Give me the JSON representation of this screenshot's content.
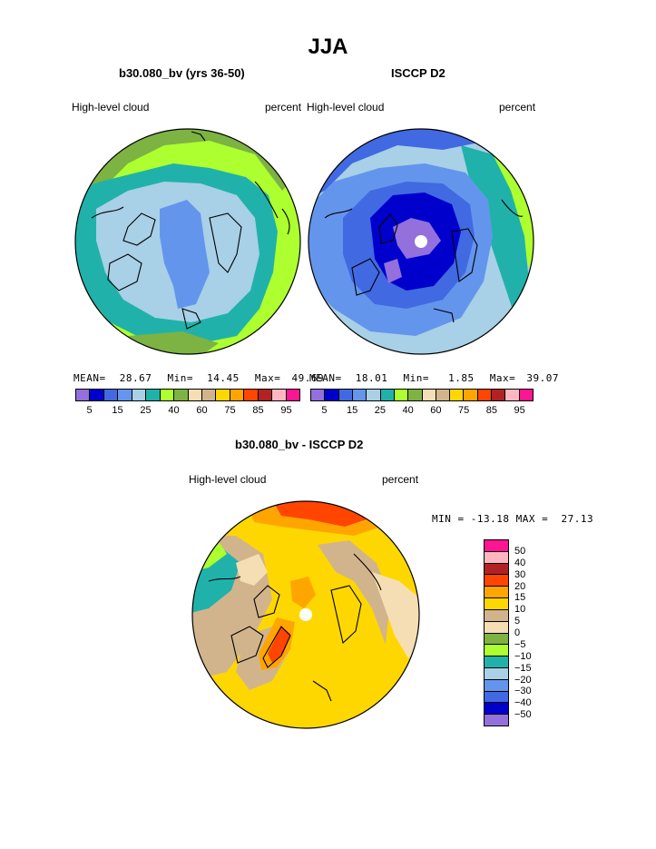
{
  "title": "JJA",
  "colors": {
    "scale": [
      "#9370db",
      "#0000cd",
      "#4169e1",
      "#6495ed",
      "#a8d0e6",
      "#20b2aa",
      "#adff2f",
      "#7cb342",
      "#f5deb3",
      "#d2b48c",
      "#ffd700",
      "#ffa500",
      "#ff4500",
      "#b22222",
      "#ffb6c1",
      "#ff1493"
    ],
    "diff": [
      "#ff1493",
      "#ffb6c1",
      "#b22222",
      "#ff4500",
      "#ffa500",
      "#ffd700",
      "#d2b48c",
      "#f5deb3",
      "#7cb342",
      "#adff2f",
      "#20b2aa",
      "#a8d0e6",
      "#6495ed",
      "#4169e1",
      "#0000cd",
      "#9370db"
    ]
  },
  "panels": {
    "model": {
      "title": "b30.080_bv (yrs 36-50)",
      "left_label": "High-level cloud",
      "right_label": "percent",
      "stats": {
        "mean_label": "MEAN=",
        "mean": "28.67",
        "min_label": "Min=",
        "min": "14.45",
        "max_label": "Max=",
        "max": "49.69"
      }
    },
    "obs": {
      "title": "ISCCP D2",
      "left_label": "High-level cloud",
      "right_label": "percent",
      "stats": {
        "mean_label": "MEAN=",
        "mean": "18.01",
        "min_label": "Min=",
        "min": "1.85",
        "max_label": "Max=",
        "max": "39.07"
      }
    },
    "diff": {
      "title": "b30.080_bv - ISCCP D2",
      "left_label": "High-level cloud",
      "right_label": "percent",
      "minmax": "MIN = -13.18 MAX =  27.13"
    }
  },
  "colorbar": {
    "labels": [
      "5",
      "15",
      "25",
      "40",
      "60",
      "75",
      "85",
      "95"
    ]
  },
  "diff_colorbar": {
    "labels": [
      "50",
      "40",
      "30",
      "20",
      "15",
      "10",
      "5",
      "0",
      "−5",
      "−10",
      "−15",
      "−20",
      "−30",
      "−40",
      "−50"
    ]
  }
}
